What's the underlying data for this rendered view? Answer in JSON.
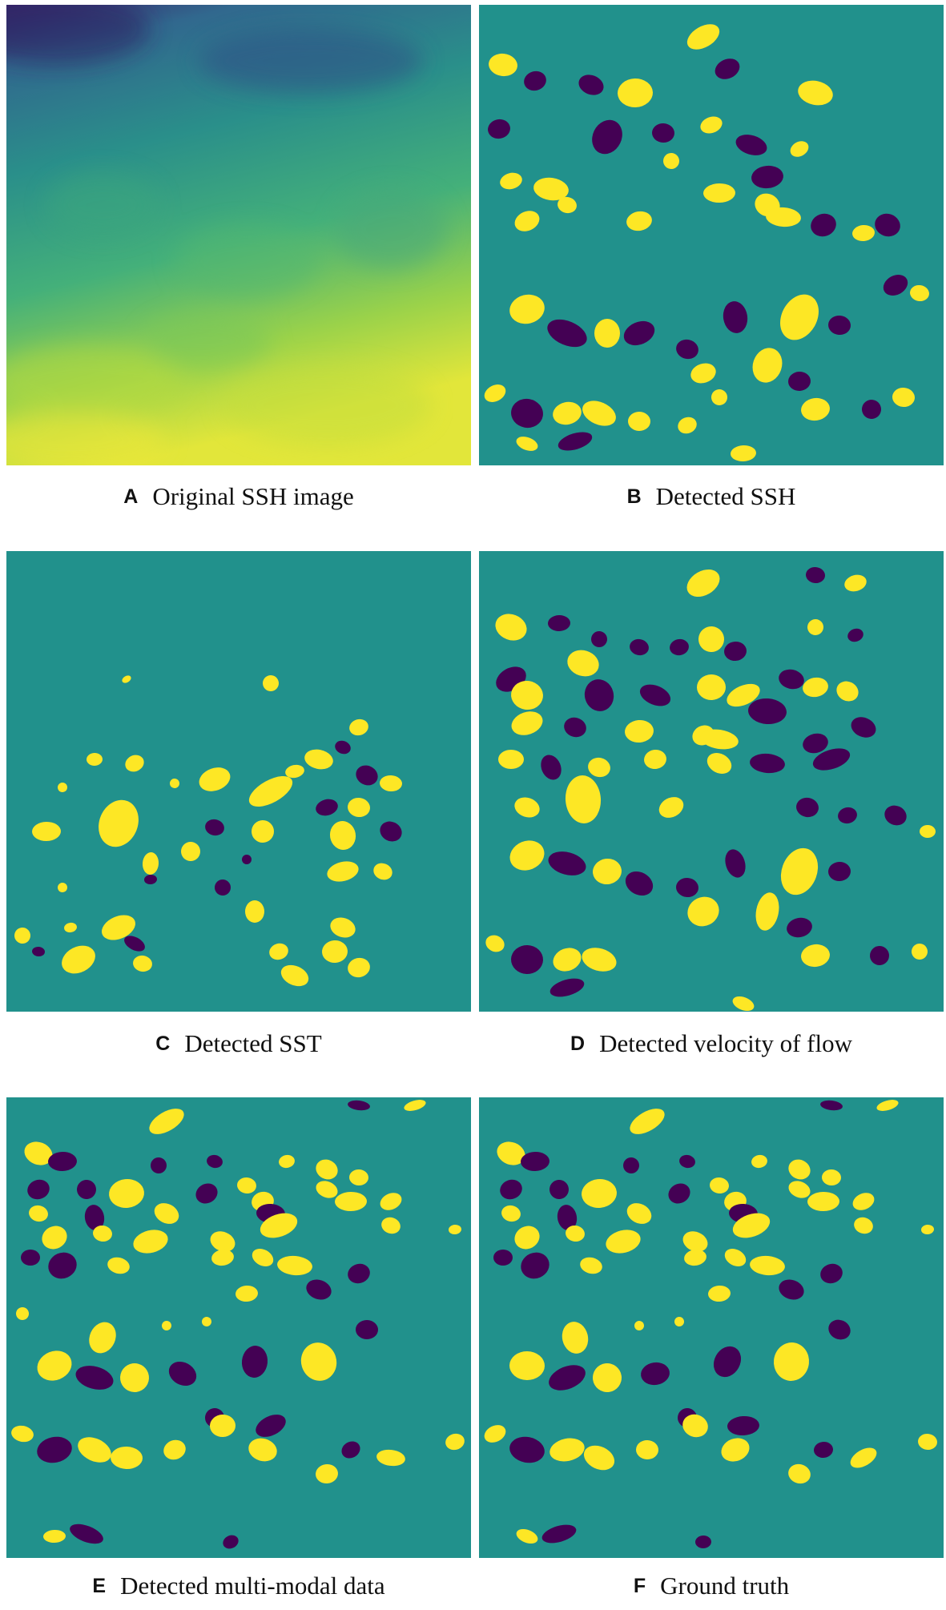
{
  "colors": {
    "background_teal": "#21918c",
    "yellow": "#fde725",
    "purple": "#440154",
    "ssh_gradient": [
      "#3b2a6e",
      "#31688e",
      "#2a8a8a",
      "#3fb07a",
      "#8fd14f",
      "#d9e43a"
    ]
  },
  "panels": [
    {
      "letter": "A",
      "caption": "Original SSH image"
    },
    {
      "letter": "B",
      "caption": "Detected SSH"
    },
    {
      "letter": "C",
      "caption": "Detected SST"
    },
    {
      "letter": "D",
      "caption": "Detected velocity of flow"
    },
    {
      "letter": "E",
      "caption": "Detected multi-modal data"
    },
    {
      "letter": "F",
      "caption": "Ground truth"
    }
  ]
}
